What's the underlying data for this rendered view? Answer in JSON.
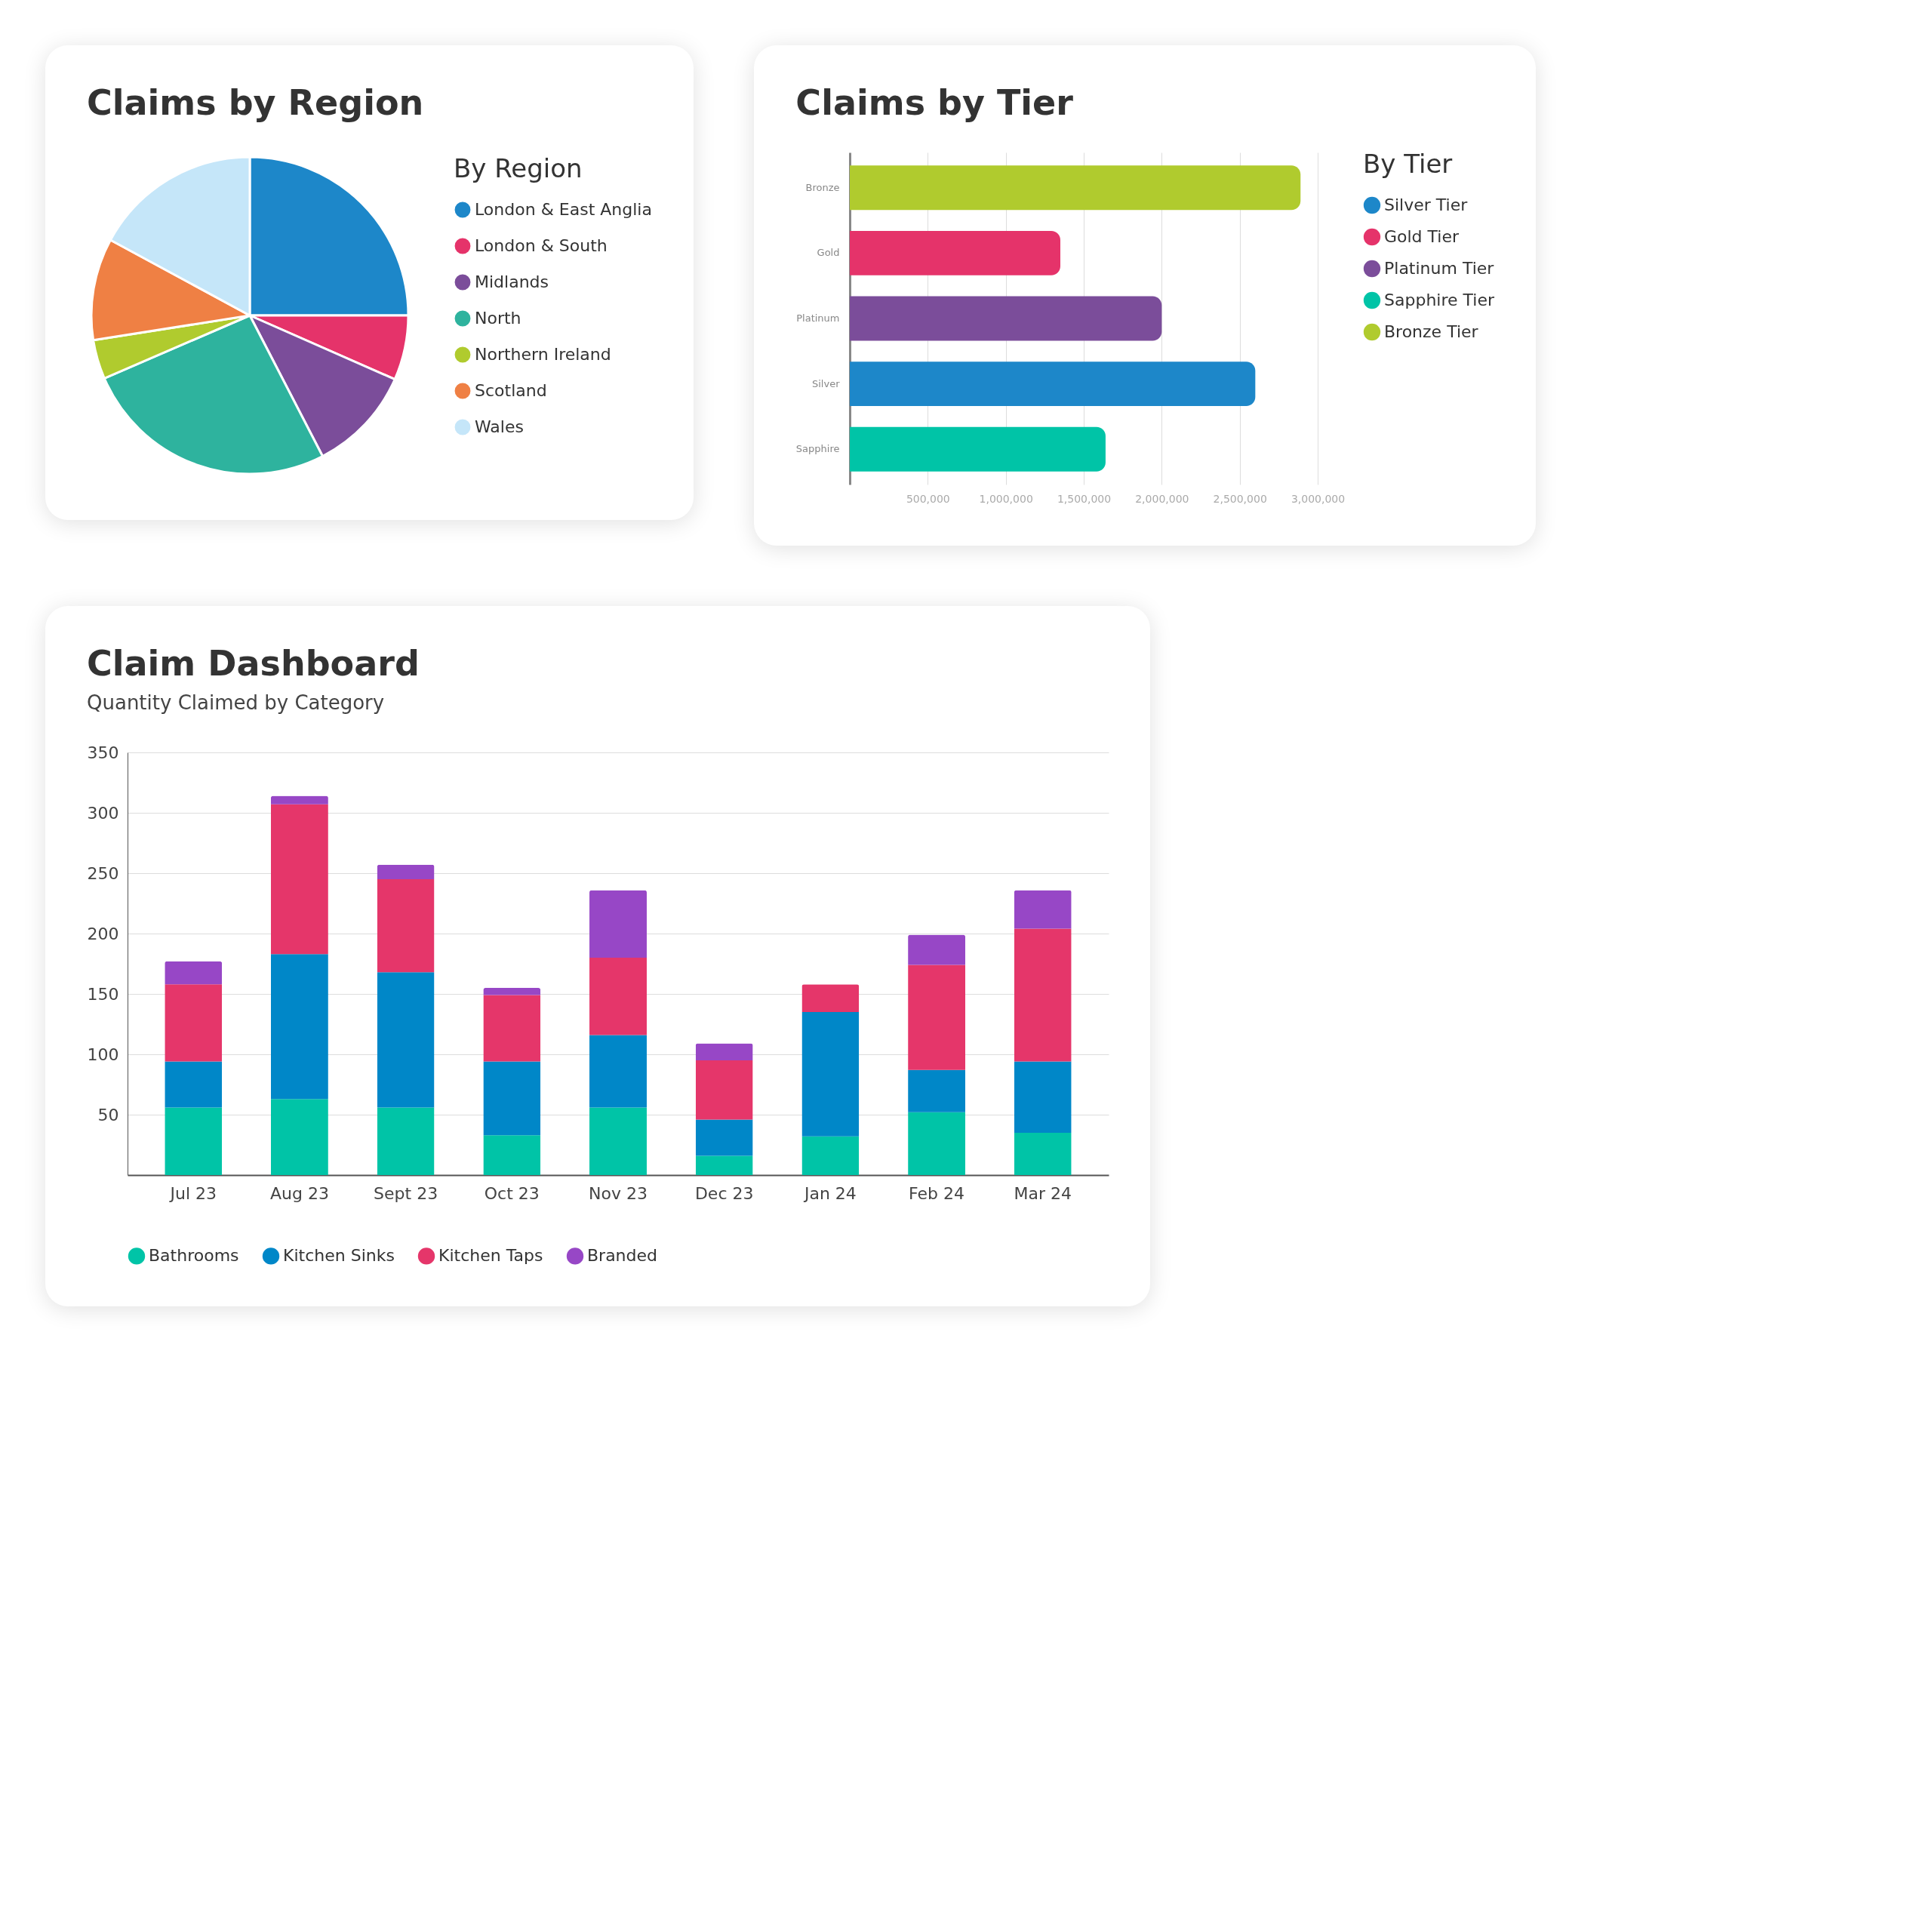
{
  "chart_data": [
    {
      "type": "pie",
      "title": "Claims by Region",
      "legend_title": "By Region",
      "legend": "right",
      "categories": [
        "London & East Anglia",
        "London & South",
        "Midlands",
        "North",
        "Northern Ireland",
        "Scotland",
        "Wales"
      ],
      "values": [
        25,
        6.6,
        10.8,
        26.1,
        4,
        10.4,
        17.1
      ],
      "colors": [
        "#1d87c9",
        "#e5336a",
        "#7b4d9a",
        "#2eb39e",
        "#b0cb2e",
        "#ef8044",
        "#c5e6f9"
      ]
    },
    {
      "type": "bar",
      "title": "Claims by Tier",
      "orientation": "horizontal",
      "legend_title": "By Tier",
      "legend": "right",
      "grid": "x",
      "categories": [
        "Bronze",
        "Gold",
        "Platinum",
        "Silver",
        "Sapphire"
      ],
      "series": [
        {
          "name": "Silver Tier",
          "color": "#1d87c9",
          "values": [
            null,
            null,
            null,
            2600000,
            null
          ]
        },
        {
          "name": "Gold Tier",
          "color": "#e5336a",
          "values": [
            null,
            1350000,
            null,
            null,
            null
          ]
        },
        {
          "name": "Platinum Tier",
          "color": "#7b4d9a",
          "values": [
            null,
            null,
            2000000,
            null,
            null
          ]
        },
        {
          "name": "Sapphire Tier",
          "color": "#00c4a7",
          "values": [
            null,
            null,
            null,
            null,
            1640000
          ]
        },
        {
          "name": "Bronze Tier",
          "color": "#b0cb2e",
          "values": [
            2890000,
            null,
            null,
            null,
            null
          ]
        }
      ],
      "xlim": [
        0,
        3000000
      ],
      "xticks": [
        {
          "value": 500000,
          "label": "500,000"
        },
        {
          "value": 1000000,
          "label": "1,000,000"
        },
        {
          "value": 1500000,
          "label": "1,500,000"
        },
        {
          "value": 2000000,
          "label": "2,000,000"
        },
        {
          "value": 2500000,
          "label": "2,500,000"
        },
        {
          "value": 3000000,
          "label": "3,000,000"
        }
      ]
    },
    {
      "type": "bar",
      "title": "Claim Dashboard",
      "subtitle": "Quantity Claimed by Category",
      "stacked": true,
      "legend": "bottom",
      "grid": "y",
      "categories": [
        "Jul 23",
        "Aug 23",
        "Sept 23",
        "Oct 23",
        "Nov 23",
        "Dec 23",
        "Jan 24",
        "Feb 24",
        "Mar 24"
      ],
      "series": [
        {
          "name": "Bathrooms",
          "color": "#00c4a7",
          "values": [
            56,
            63,
            56,
            33,
            56,
            16,
            32,
            52,
            35
          ]
        },
        {
          "name": "Kitchen Sinks",
          "color": "#0087c8",
          "values": [
            38,
            120,
            112,
            61,
            60,
            30,
            103,
            35,
            59
          ]
        },
        {
          "name": "Kitchen Taps",
          "color": "#e5366a",
          "values": [
            64,
            124,
            77,
            55,
            64,
            49,
            23,
            87,
            110
          ]
        },
        {
          "name": "Branded",
          "color": "#9747c6",
          "values": [
            19,
            7,
            12,
            6,
            56,
            14,
            null,
            25,
            32
          ]
        }
      ],
      "ylim": [
        0,
        350
      ],
      "yticks": [
        50,
        100,
        150,
        200,
        250,
        300,
        350
      ]
    }
  ]
}
